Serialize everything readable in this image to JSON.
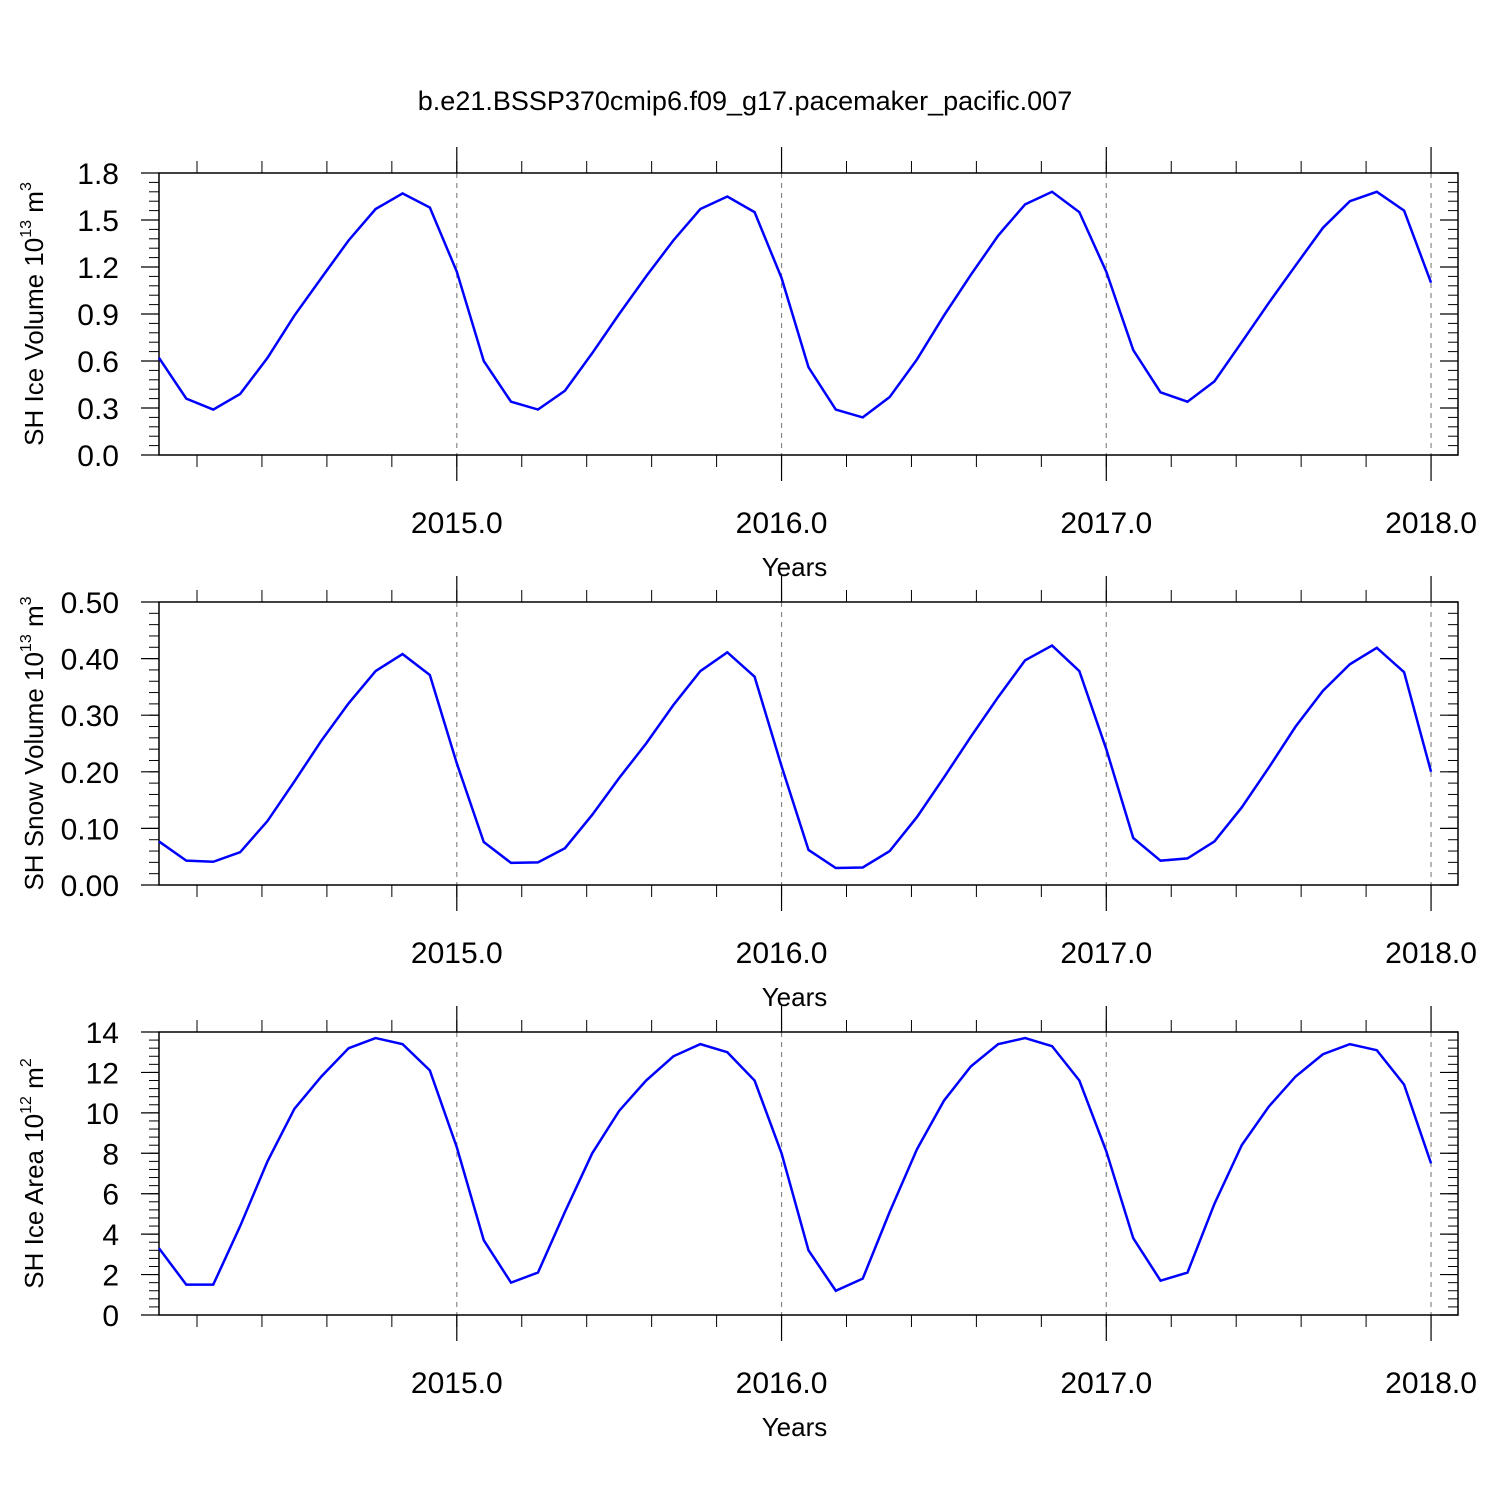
{
  "chart_data": [
    {
      "type": "line",
      "title": "b.e21.BSSP370cmip6.f09_g17.pacemaker_pacific.007",
      "ylabel": {
        "text": "SH Ice Volume 10",
        "exp": "13",
        "unit": " m",
        "unit_exp": "3"
      },
      "xlabel": "Years",
      "x": [
        2014.083,
        2014.167,
        2014.25,
        2014.333,
        2014.417,
        2014.5,
        2014.583,
        2014.667,
        2014.75,
        2014.833,
        2014.917,
        2015.0,
        2015.083,
        2015.167,
        2015.25,
        2015.333,
        2015.417,
        2015.5,
        2015.583,
        2015.667,
        2015.75,
        2015.833,
        2015.917,
        2016.0,
        2016.083,
        2016.167,
        2016.25,
        2016.333,
        2016.417,
        2016.5,
        2016.583,
        2016.667,
        2016.75,
        2016.833,
        2016.917,
        2017.0,
        2017.083,
        2017.167,
        2017.25,
        2017.333,
        2017.417,
        2017.5,
        2017.583,
        2017.667,
        2017.75,
        2017.833,
        2017.917,
        2018.0
      ],
      "series": [
        {
          "color": "#0000ff",
          "values": [
            0.62,
            0.36,
            0.29,
            0.39,
            0.62,
            0.89,
            1.13,
            1.37,
            1.57,
            1.67,
            1.58,
            1.17,
            0.6,
            0.34,
            0.29,
            0.41,
            0.65,
            0.9,
            1.14,
            1.37,
            1.57,
            1.65,
            1.55,
            1.13,
            0.56,
            0.29,
            0.24,
            0.37,
            0.61,
            0.89,
            1.15,
            1.4,
            1.6,
            1.68,
            1.55,
            1.17,
            0.67,
            0.4,
            0.34,
            0.47,
            0.72,
            0.97,
            1.21,
            1.45,
            1.62,
            1.68,
            1.56,
            1.1
          ]
        }
      ],
      "xlim": [
        2014.083,
        2018.083
      ],
      "xticks": [
        {
          "value": 2015,
          "label": "2015.0"
        },
        {
          "value": 2016,
          "label": "2016.0"
        },
        {
          "value": 2017,
          "label": "2017.0"
        },
        {
          "value": 2018,
          "label": "2018.0"
        }
      ],
      "ylim": [
        0,
        1.8
      ],
      "yticks": [
        {
          "value": 0,
          "label": "0.0"
        },
        0.3,
        0.6,
        0.9,
        1.2,
        1.5,
        1.8
      ],
      "grid": true
    },
    {
      "type": "line",
      "ylabel": {
        "text": "SH Snow Volume 10",
        "exp": "13",
        "unit": " m",
        "unit_exp": "3"
      },
      "xlabel": "Years",
      "x": [
        2014.083,
        2014.167,
        2014.25,
        2014.333,
        2014.417,
        2014.5,
        2014.583,
        2014.667,
        2014.75,
        2014.833,
        2014.917,
        2015.0,
        2015.083,
        2015.167,
        2015.25,
        2015.333,
        2015.417,
        2015.5,
        2015.583,
        2015.667,
        2015.75,
        2015.833,
        2015.917,
        2016.0,
        2016.083,
        2016.167,
        2016.25,
        2016.333,
        2016.417,
        2016.5,
        2016.583,
        2016.667,
        2016.75,
        2016.833,
        2016.917,
        2017.0,
        2017.083,
        2017.167,
        2017.25,
        2017.333,
        2017.417,
        2017.5,
        2017.583,
        2017.667,
        2017.75,
        2017.833,
        2017.917,
        2018.0
      ],
      "series": [
        {
          "color": "#0000ff",
          "values": [
            0.077,
            0.043,
            0.041,
            0.058,
            0.113,
            0.183,
            0.255,
            0.321,
            0.378,
            0.408,
            0.371,
            0.215,
            0.076,
            0.039,
            0.04,
            0.065,
            0.124,
            0.189,
            0.25,
            0.318,
            0.378,
            0.411,
            0.368,
            0.21,
            0.062,
            0.03,
            0.031,
            0.06,
            0.12,
            0.19,
            0.262,
            0.332,
            0.397,
            0.423,
            0.378,
            0.24,
            0.083,
            0.043,
            0.047,
            0.077,
            0.137,
            0.207,
            0.28,
            0.343,
            0.39,
            0.419,
            0.376,
            0.2
          ]
        }
      ],
      "xlim": [
        2014.083,
        2018.083
      ],
      "xticks": [
        {
          "value": 2015,
          "label": "2015.0"
        },
        {
          "value": 2016,
          "label": "2016.0"
        },
        {
          "value": 2017,
          "label": "2017.0"
        },
        {
          "value": 2018,
          "label": "2018.0"
        }
      ],
      "ylim": [
        0,
        0.5
      ],
      "yticks": [
        {
          "value": 0,
          "label": "0.00"
        },
        {
          "value": 0.1,
          "label": "0.10"
        },
        {
          "value": 0.2,
          "label": "0.20"
        },
        {
          "value": 0.3,
          "label": "0.30"
        },
        {
          "value": 0.4,
          "label": "0.40"
        },
        {
          "value": 0.5,
          "label": "0.50"
        }
      ],
      "grid": true
    },
    {
      "type": "line",
      "ylabel": {
        "text": "SH Ice Area 10",
        "exp": "12",
        "unit": " m",
        "unit_exp": "2"
      },
      "xlabel": "Years",
      "x": [
        2014.083,
        2014.167,
        2014.25,
        2014.333,
        2014.417,
        2014.5,
        2014.583,
        2014.667,
        2014.75,
        2014.833,
        2014.917,
        2015.0,
        2015.083,
        2015.167,
        2015.25,
        2015.333,
        2015.417,
        2015.5,
        2015.583,
        2015.667,
        2015.75,
        2015.833,
        2015.917,
        2016.0,
        2016.083,
        2016.167,
        2016.25,
        2016.333,
        2016.417,
        2016.5,
        2016.583,
        2016.667,
        2016.75,
        2016.833,
        2016.917,
        2017.0,
        2017.083,
        2017.167,
        2017.25,
        2017.333,
        2017.417,
        2017.5,
        2017.583,
        2017.667,
        2017.75,
        2017.833,
        2017.917,
        2018.0
      ],
      "series": [
        {
          "color": "#0000ff",
          "values": [
            3.3,
            1.5,
            1.5,
            4.4,
            7.6,
            10.2,
            11.8,
            13.2,
            13.7,
            13.4,
            12.1,
            8.3,
            3.7,
            1.6,
            2.1,
            5.1,
            8.0,
            10.1,
            11.6,
            12.8,
            13.4,
            13.0,
            11.6,
            8.0,
            3.2,
            1.2,
            1.8,
            5.1,
            8.2,
            10.6,
            12.3,
            13.4,
            13.7,
            13.3,
            11.6,
            8.1,
            3.8,
            1.7,
            2.1,
            5.5,
            8.4,
            10.3,
            11.8,
            12.9,
            13.4,
            13.1,
            11.4,
            7.5
          ]
        }
      ],
      "xlim": [
        2014.083,
        2018.083
      ],
      "xticks": [
        {
          "value": 2015,
          "label": "2015.0"
        },
        {
          "value": 2016,
          "label": "2016.0"
        },
        {
          "value": 2017,
          "label": "2017.0"
        },
        {
          "value": 2018,
          "label": "2018.0"
        }
      ],
      "ylim": [
        0,
        14
      ],
      "yticks": [
        0,
        2,
        4,
        6,
        8,
        10,
        12,
        14
      ],
      "grid": true
    }
  ]
}
